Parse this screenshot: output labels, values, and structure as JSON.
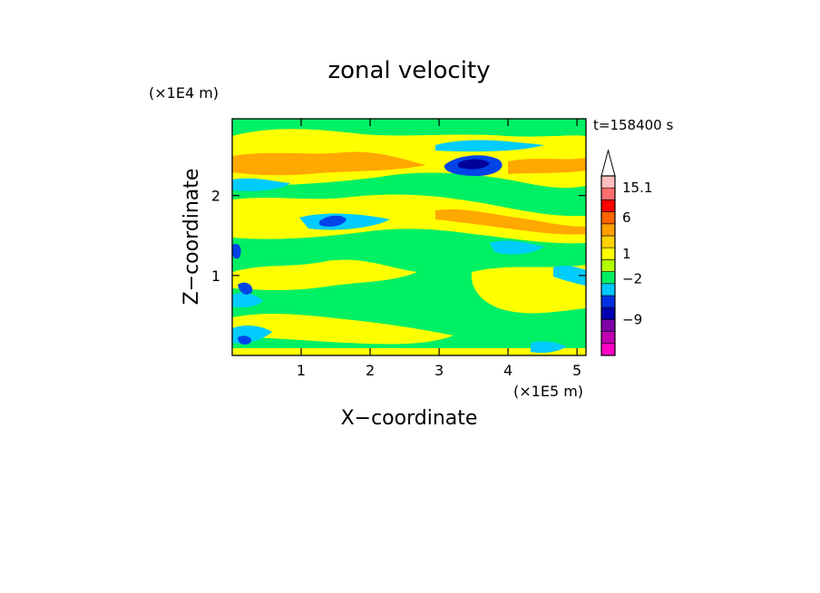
{
  "chart_data": {
    "type": "heatmap",
    "title": "zonal velocity",
    "time_label": "t=158400 s",
    "x_axis": {
      "label": "X−coordinate",
      "unit_label": "(×1E5 m)",
      "ticks": [
        1,
        2,
        3,
        4,
        5
      ],
      "range": [
        0,
        5.13
      ]
    },
    "y_axis": {
      "label": "Z−coordinate",
      "unit_label": "(×1E4 m)",
      "ticks": [
        1,
        2
      ],
      "range": [
        0,
        2.96
      ]
    },
    "colorbar": {
      "tick_labels": [
        {
          "value": 15.1,
          "text": "15.1"
        },
        {
          "value": 6,
          "text": "6"
        },
        {
          "value": 1,
          "text": "1"
        },
        {
          "value": -2,
          "text": "−2"
        },
        {
          "value": -9,
          "text": "−9"
        }
      ],
      "levels": [
        {
          "color": "#ff00c8"
        },
        {
          "color": "#c000b0"
        },
        {
          "color": "#8000a8"
        },
        {
          "color": "#0000b0"
        },
        {
          "color": "#0030e0"
        },
        {
          "color": "#00c8ff"
        },
        {
          "color": "#00f064"
        },
        {
          "color": "#b4ff00"
        },
        {
          "color": "#ffff00"
        },
        {
          "color": "#ffd200"
        },
        {
          "color": "#ffa000"
        },
        {
          "color": "#ff6400"
        },
        {
          "color": "#ff0000"
        },
        {
          "color": "#ff6e6e"
        },
        {
          "color": "#ffbebe"
        }
      ],
      "overflow_color": "#ffffff"
    },
    "field_colors": {
      "strong_negative": "#00009a",
      "negative": "#0044e8",
      "weak_negative": "#00ccff",
      "near_zero": "#00f064",
      "weak_positive": "#ffff00",
      "positive": "#ffa800"
    },
    "features": [
      {
        "x": 3.5,
        "z": 2.4,
        "kind": "strong_negative"
      },
      {
        "x": 1.45,
        "z": 1.65,
        "kind": "negative"
      },
      {
        "x": 0.25,
        "z": 0.75,
        "kind": "negative"
      },
      {
        "x": 0.1,
        "z": 1.3,
        "kind": "negative"
      }
    ]
  }
}
